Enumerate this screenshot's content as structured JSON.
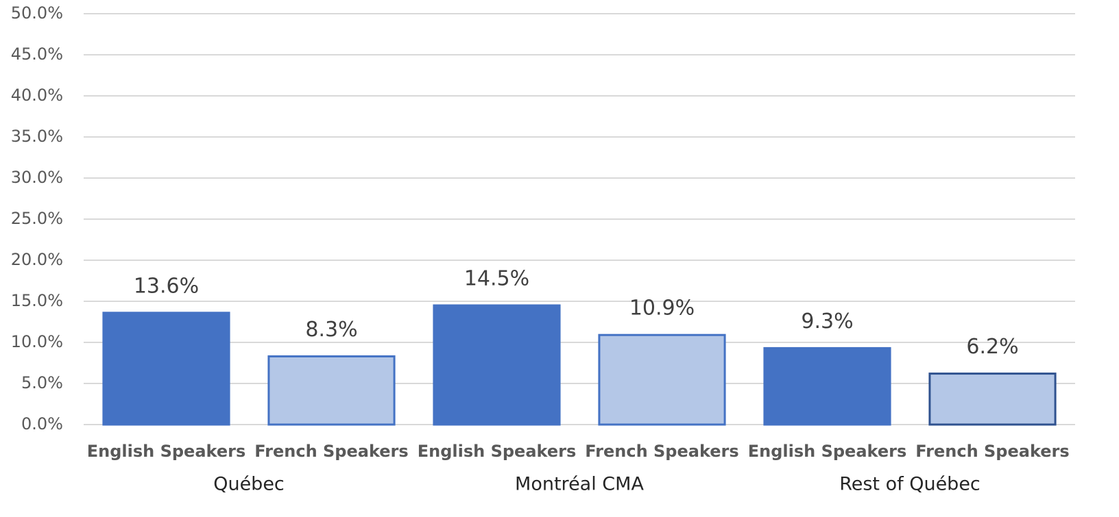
{
  "chart_data": {
    "type": "bar",
    "groups": [
      "Québec",
      "Montréal CMA",
      "Rest of Québec"
    ],
    "categories": [
      "English Speakers",
      "French Speakers",
      "English Speakers",
      "French Speakers",
      "English Speakers",
      "French Speakers"
    ],
    "values": [
      13.6,
      8.3,
      14.5,
      10.9,
      9.3,
      6.2
    ],
    "value_labels": [
      "13.6%",
      "8.3%",
      "14.5%",
      "10.9%",
      "9.3%",
      "6.2%"
    ],
    "colors": [
      "#4472c4",
      "#b4c7e7",
      "#4472c4",
      "#b4c7e7",
      "#4472c4",
      "#b4c7e7"
    ],
    "edge_colors": [
      "#4472c4",
      "#4472c4",
      "#4472c4",
      "#4472c4",
      "#4472c4",
      "#2f528f"
    ],
    "ylim": [
      0,
      50
    ],
    "yticks": [
      {
        "value": 0,
        "label": "0.0%"
      },
      {
        "value": 5,
        "label": "5.0%"
      },
      {
        "value": 10,
        "label": "10.0%"
      },
      {
        "value": 15,
        "label": "15.0%"
      },
      {
        "value": 20,
        "label": "20.0%"
      },
      {
        "value": 25,
        "label": "25.0%"
      },
      {
        "value": 30,
        "label": "30.0%"
      },
      {
        "value": 35,
        "label": "35.0%"
      },
      {
        "value": 40,
        "label": "40.0%"
      },
      {
        "value": 45,
        "label": "45.0%"
      },
      {
        "value": 50,
        "label": "50.0%"
      }
    ],
    "grid": true
  }
}
